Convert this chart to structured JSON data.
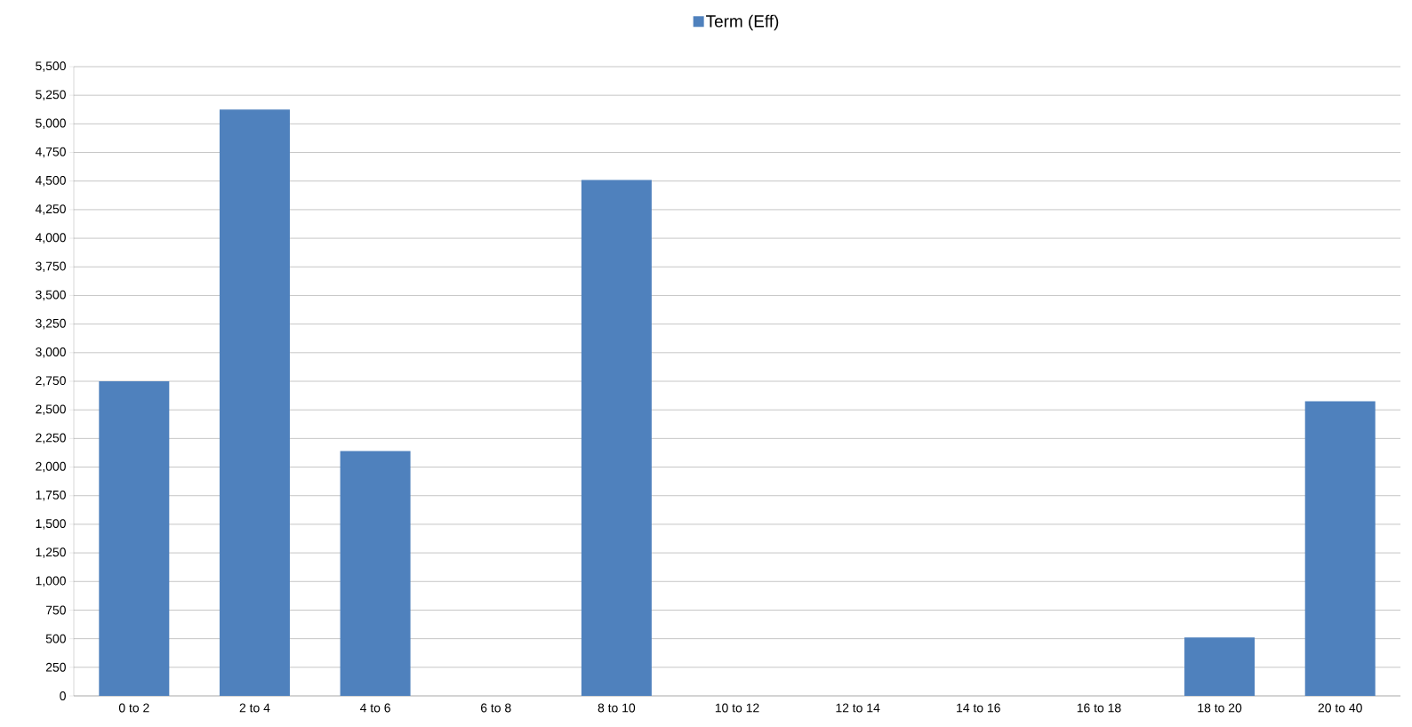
{
  "chart_data": {
    "type": "bar",
    "categories": [
      "0 to 2",
      "2 to 4",
      "4 to 6",
      "6 to 8",
      "8 to 10",
      "10 to 12",
      "12 to 14",
      "14 to 16",
      "16 to 18",
      "18 to 20",
      "20 to 40"
    ],
    "series": [
      {
        "name": "Term (Eff)",
        "color": "#4f81bd",
        "values": [
          2750,
          5125,
          2140,
          0,
          4510,
          0,
          0,
          0,
          0,
          510,
          2575
        ]
      }
    ],
    "ylim": [
      0,
      5500
    ],
    "yticks": [
      0,
      250,
      500,
      750,
      {
        "value": 1000,
        "label": "1,000"
      },
      {
        "value": 1250,
        "label": "1,250"
      },
      {
        "value": 1500,
        "label": "1,500"
      },
      {
        "value": 1750,
        "label": "1,750"
      },
      {
        "value": 2000,
        "label": "2,000"
      },
      {
        "value": 2250,
        "label": "2,250"
      },
      {
        "value": 2500,
        "label": "2,500"
      },
      {
        "value": 2750,
        "label": "2,750"
      },
      {
        "value": 3000,
        "label": "3,000"
      },
      {
        "value": 3250,
        "label": "3,250"
      },
      {
        "value": 3500,
        "label": "3,500"
      },
      {
        "value": 3750,
        "label": "3,750"
      },
      {
        "value": 4000,
        "label": "4,000"
      },
      {
        "value": 4250,
        "label": "4,250"
      },
      {
        "value": 4500,
        "label": "4,500"
      },
      {
        "value": 4750,
        "label": "4,750"
      },
      {
        "value": 5000,
        "label": "5,000"
      },
      {
        "value": 5250,
        "label": "5,250"
      },
      {
        "value": 5500,
        "label": "5,500"
      }
    ],
    "grid": "y",
    "legend": "top"
  }
}
